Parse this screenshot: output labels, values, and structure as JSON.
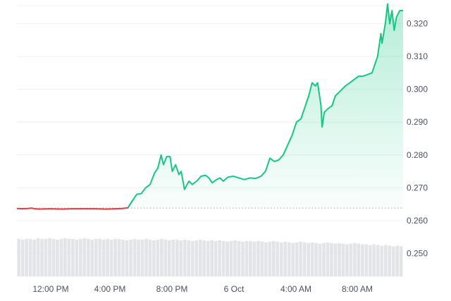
{
  "chart_data": {
    "type": "area",
    "x_ticks": [
      "12:00 PM",
      "4:00 PM",
      "8:00 PM",
      "6 Oct",
      "4:00 AM",
      "8:00 AM"
    ],
    "y_ticks": [
      "0.250",
      "0.260",
      "0.270",
      "0.280",
      "0.290",
      "0.300",
      "0.310",
      "0.320"
    ],
    "ylim": [
      0.243,
      0.3255
    ],
    "baseline": 0.2638,
    "grid": true,
    "colors": {
      "up": "#16c784",
      "down": "#ea3943",
      "grid": "#eef0f3",
      "baseline": "#9aa0a6",
      "volume": "#e2e4e8"
    },
    "series": [
      {
        "values": [
          [
            0,
            0.2637
          ],
          [
            0.5,
            0.2636
          ],
          [
            1,
            0.2637
          ],
          [
            1.3,
            0.2638
          ],
          [
            1.6,
            0.2636
          ],
          [
            2,
            0.2635
          ],
          [
            3,
            0.2636
          ],
          [
            4,
            0.2635
          ],
          [
            5,
            0.2636
          ],
          [
            6,
            0.2636
          ],
          [
            7,
            0.2636
          ],
          [
            8,
            0.2635
          ],
          [
            9,
            0.2636
          ],
          [
            9.5,
            0.2637
          ],
          [
            10,
            0.2639
          ],
          [
            10.4,
            0.266
          ],
          [
            10.8,
            0.268
          ],
          [
            11.2,
            0.2682
          ],
          [
            11.6,
            0.27
          ],
          [
            12,
            0.271
          ],
          [
            12.4,
            0.2745
          ],
          [
            12.7,
            0.276
          ],
          [
            13,
            0.28
          ],
          [
            13.2,
            0.277
          ],
          [
            13.5,
            0.2795
          ],
          [
            13.8,
            0.2795
          ],
          [
            14,
            0.275
          ],
          [
            14.3,
            0.277
          ],
          [
            14.6,
            0.274
          ],
          [
            14.8,
            0.275
          ],
          [
            15.1,
            0.2695
          ],
          [
            15.5,
            0.272
          ],
          [
            15.8,
            0.271
          ],
          [
            16.2,
            0.272
          ],
          [
            16.6,
            0.2735
          ],
          [
            17,
            0.2738
          ],
          [
            17.3,
            0.273
          ],
          [
            17.6,
            0.2715
          ],
          [
            18,
            0.2725
          ],
          [
            18.3,
            0.273
          ],
          [
            18.6,
            0.272
          ],
          [
            19,
            0.2732
          ],
          [
            19.5,
            0.2735
          ],
          [
            20,
            0.273
          ],
          [
            20.5,
            0.2725
          ],
          [
            21,
            0.273
          ],
          [
            21.5,
            0.2728
          ],
          [
            22,
            0.2735
          ],
          [
            22.4,
            0.275
          ],
          [
            22.8,
            0.279
          ],
          [
            23.2,
            0.278
          ],
          [
            23.6,
            0.2785
          ],
          [
            24,
            0.28
          ],
          [
            24.4,
            0.283
          ],
          [
            24.8,
            0.286
          ],
          [
            25.2,
            0.29
          ],
          [
            25.6,
            0.291
          ],
          [
            26,
            0.295
          ],
          [
            26.3,
            0.298
          ],
          [
            26.6,
            0.302
          ],
          [
            26.9,
            0.301
          ],
          [
            27.1,
            0.302
          ],
          [
            27.4,
            0.295
          ],
          [
            27.5,
            0.2885
          ],
          [
            27.7,
            0.293
          ],
          [
            28,
            0.294
          ],
          [
            28.4,
            0.295
          ],
          [
            28.7,
            0.298
          ],
          [
            29,
            0.299
          ],
          [
            29.3,
            0.3
          ],
          [
            29.6,
            0.301
          ],
          [
            30,
            0.302
          ],
          [
            30.4,
            0.303
          ],
          [
            30.8,
            0.304
          ],
          [
            31.2,
            0.304
          ],
          [
            31.6,
            0.3045
          ],
          [
            32,
            0.305
          ],
          [
            32.3,
            0.308
          ],
          [
            32.5,
            0.31
          ],
          [
            32.8,
            0.317
          ],
          [
            32.9,
            0.314
          ],
          [
            33.2,
            0.32
          ],
          [
            33.4,
            0.326
          ],
          [
            33.6,
            0.32
          ],
          [
            33.8,
            0.324
          ],
          [
            34,
            0.318
          ],
          [
            34.2,
            0.322
          ],
          [
            34.5,
            0.324
          ],
          [
            34.8,
            0.324
          ]
        ]
      }
    ],
    "volume": [
      0.55,
      0.54,
      0.55,
      0.55,
      0.54,
      0.56,
      0.55,
      0.55,
      0.56,
      0.55,
      0.54,
      0.55,
      0.56,
      0.55,
      0.55,
      0.54,
      0.55,
      0.56,
      0.55,
      0.54,
      0.55,
      0.55,
      0.54,
      0.55,
      0.54,
      0.55,
      0.55,
      0.54,
      0.53,
      0.54,
      0.55,
      0.54,
      0.54,
      0.55,
      0.54,
      0.53,
      0.54,
      0.55,
      0.54,
      0.53,
      0.54,
      0.54,
      0.53,
      0.54,
      0.53,
      0.52,
      0.53,
      0.54,
      0.53,
      0.52,
      0.53,
      0.52,
      0.53,
      0.52,
      0.51,
      0.52,
      0.53,
      0.52,
      0.51,
      0.52,
      0.52,
      0.51,
      0.52,
      0.51,
      0.5,
      0.51,
      0.52,
      0.51,
      0.5,
      0.51,
      0.5,
      0.49,
      0.5,
      0.51,
      0.5,
      0.49,
      0.5,
      0.49,
      0.48,
      0.49,
      0.5,
      0.49,
      0.48,
      0.49,
      0.48,
      0.47,
      0.48,
      0.49,
      0.48,
      0.47,
      0.47,
      0.46,
      0.47,
      0.46,
      0.45,
      0.46,
      0.45,
      0.44,
      0.45,
      0.44
    ]
  }
}
